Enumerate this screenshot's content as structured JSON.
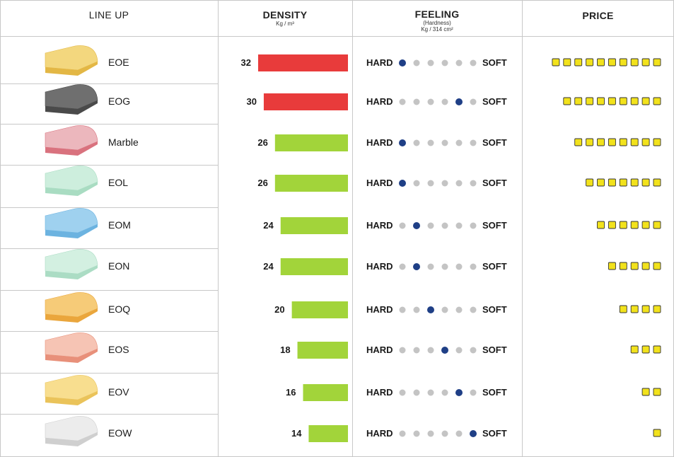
{
  "headers": {
    "lineup": "LINE UP",
    "density": "DENSITY",
    "density_unit": "Kg / m³",
    "feeling": "FEELING",
    "feeling_sub": "(Hardness)",
    "feeling_unit": "Kg / 314 cm²",
    "price": "PRICE"
  },
  "labels": {
    "hard": "HARD",
    "soft": "SOFT"
  },
  "colors": {
    "density_high": "#e83b3b",
    "density_low": "#a2d43a",
    "dot_active": "#1f3f86",
    "dot_inactive": "#c4c4c4",
    "price_square": "#f2e21c",
    "grid": "#c8c8c8"
  },
  "chart_data": {
    "type": "table",
    "columns": [
      "LINE UP",
      "DENSITY",
      "FEELING",
      "PRICE"
    ],
    "density_max": 32,
    "feeling_scale_steps": 6,
    "price_max": 10,
    "rows": [
      {
        "name": "EOE",
        "density": 32,
        "feeling": 1,
        "price": 10,
        "foam_color": "#f3d77e",
        "foam_dark": "#e3b745",
        "density_class": "high"
      },
      {
        "name": "EOG",
        "density": 30,
        "feeling": 5,
        "price": 9,
        "foam_color": "#6f6f6f",
        "foam_dark": "#4a4a4a",
        "density_class": "high"
      },
      {
        "name": "Marble",
        "density": 26,
        "feeling": 1,
        "price": 8,
        "foam_color": "#ecb7bd",
        "foam_dark": "#d9727e",
        "density_class": "low"
      },
      {
        "name": "EOL",
        "density": 26,
        "feeling": 1,
        "price": 7,
        "foam_color": "#cdeedd",
        "foam_dark": "#a9dcc2",
        "density_class": "low"
      },
      {
        "name": "EOM",
        "density": 24,
        "feeling": 2,
        "price": 6,
        "foam_color": "#9fd1ef",
        "foam_dark": "#6cb3e0",
        "density_class": "low"
      },
      {
        "name": "EON",
        "density": 24,
        "feeling": 2,
        "price": 5,
        "foam_color": "#d3f0e1",
        "foam_dark": "#abdcc4",
        "density_class": "low"
      },
      {
        "name": "EOQ",
        "density": 20,
        "feeling": 3,
        "price": 4,
        "foam_color": "#f6cb78",
        "foam_dark": "#eaa63c",
        "density_class": "low"
      },
      {
        "name": "EOS",
        "density": 18,
        "feeling": 4,
        "price": 3,
        "foam_color": "#f6c4b4",
        "foam_dark": "#e8907a",
        "density_class": "low"
      },
      {
        "name": "EOV",
        "density": 16,
        "feeling": 5,
        "price": 2,
        "foam_color": "#f8de8f",
        "foam_dark": "#eac35a",
        "density_class": "low"
      },
      {
        "name": "EOW",
        "density": 14,
        "feeling": 6,
        "price": 1,
        "foam_color": "#ececec",
        "foam_dark": "#cfcfcf",
        "density_class": "low"
      }
    ]
  }
}
